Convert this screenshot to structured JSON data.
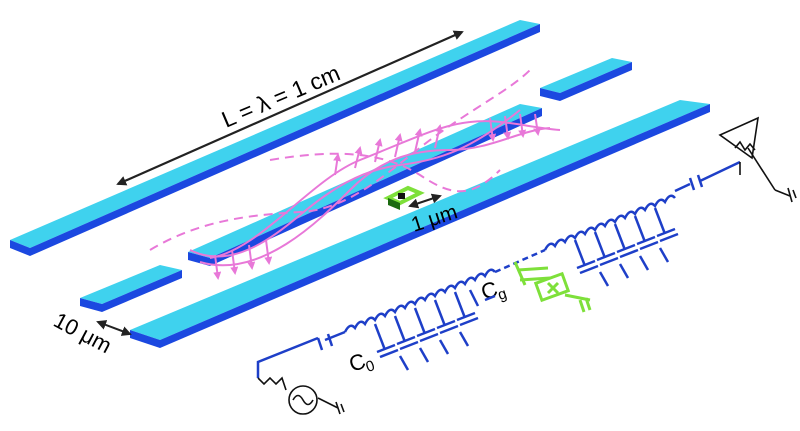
{
  "labels": {
    "length": "L = λ = 1 cm",
    "gap": "10 μm",
    "qubit_size": "1 μm",
    "c0": "C",
    "c0_sub": "0",
    "cg": "C",
    "cg_sub": "g"
  },
  "colors": {
    "strip_top": "#3fd2ee",
    "strip_side": "#1b48e0",
    "circuit": "#1e3fc8",
    "field": "#e878d8",
    "qubit": "#7ee03a",
    "arrow": "#222222"
  },
  "icons": {
    "ac_source": "ac-source-icon",
    "antenna": "detector-icon",
    "ground": "ground-icon"
  }
}
